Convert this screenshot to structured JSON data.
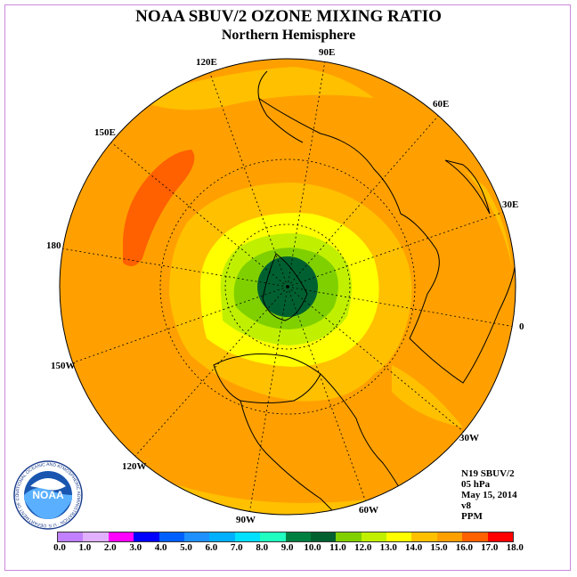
{
  "title": "NOAA SBUV/2 OZONE MIXING RATIO",
  "subtitle": "Northern Hemisphere",
  "info": {
    "satellite": "N19 SBUV/2",
    "level": "05 hPa",
    "date": "May 15, 2014",
    "version": "v8",
    "units": "PPM"
  },
  "longitude_labels": [
    "90E",
    "60E",
    "30E",
    "0",
    "30W",
    "60W",
    "90W",
    "120W",
    "150W",
    "180",
    "150E",
    "120E"
  ],
  "colorbar": {
    "ticks": [
      "0.0",
      "1.0",
      "2.0",
      "3.0",
      "4.0",
      "5.0",
      "6.0",
      "7.0",
      "8.0",
      "9.0",
      "10.0",
      "11.0",
      "12.0",
      "13.0",
      "14.0",
      "15.0",
      "16.0",
      "17.0",
      "18.0"
    ],
    "colors": [
      "#c080ff",
      "#e0b0ff",
      "#ff00ff",
      "#0000ff",
      "#0060ff",
      "#1e90ff",
      "#00b0ff",
      "#00e0ff",
      "#20ffc0",
      "#008040",
      "#006030",
      "#80d000",
      "#c0f000",
      "#ffff00",
      "#ffc000",
      "#ffa000",
      "#ff6000",
      "#ff0000",
      "#8b5a2b"
    ]
  },
  "logo_text": "NOAA",
  "logo_ring_text": "NATIONAL OCEANIC AND ATMOSPHERIC ADMINISTRATION · U.S. DEPARTMENT OF COMMERCE"
}
